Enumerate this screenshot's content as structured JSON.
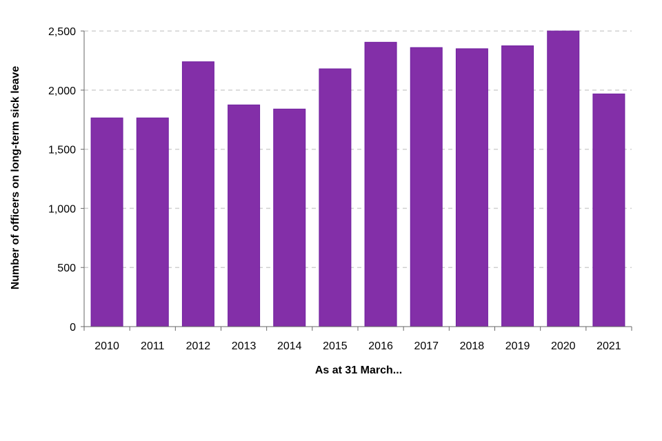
{
  "chart_data": {
    "type": "bar",
    "title": "",
    "xlabel": "As at 31 March...",
    "ylabel": "Number of officers on long-term sick leave",
    "categories": [
      "2010",
      "2011",
      "2012",
      "2013",
      "2014",
      "2015",
      "2016",
      "2017",
      "2018",
      "2019",
      "2020",
      "2021"
    ],
    "values": [
      1765,
      1765,
      2240,
      1875,
      1840,
      2180,
      2405,
      2360,
      2350,
      2375,
      2500,
      1968
    ],
    "ylim": [
      0,
      2500
    ],
    "yticks": [
      0,
      500,
      1000,
      1500,
      2000,
      2500
    ],
    "ytick_labels": [
      "0",
      "500",
      "1,000",
      "1,500",
      "2,000",
      "2,500"
    ],
    "grid": "horizontal dashed",
    "legend": "none",
    "colors": {
      "bar": "#832FA8",
      "bar_edge": "#7020A0",
      "grid": "#D0D0D0"
    }
  }
}
